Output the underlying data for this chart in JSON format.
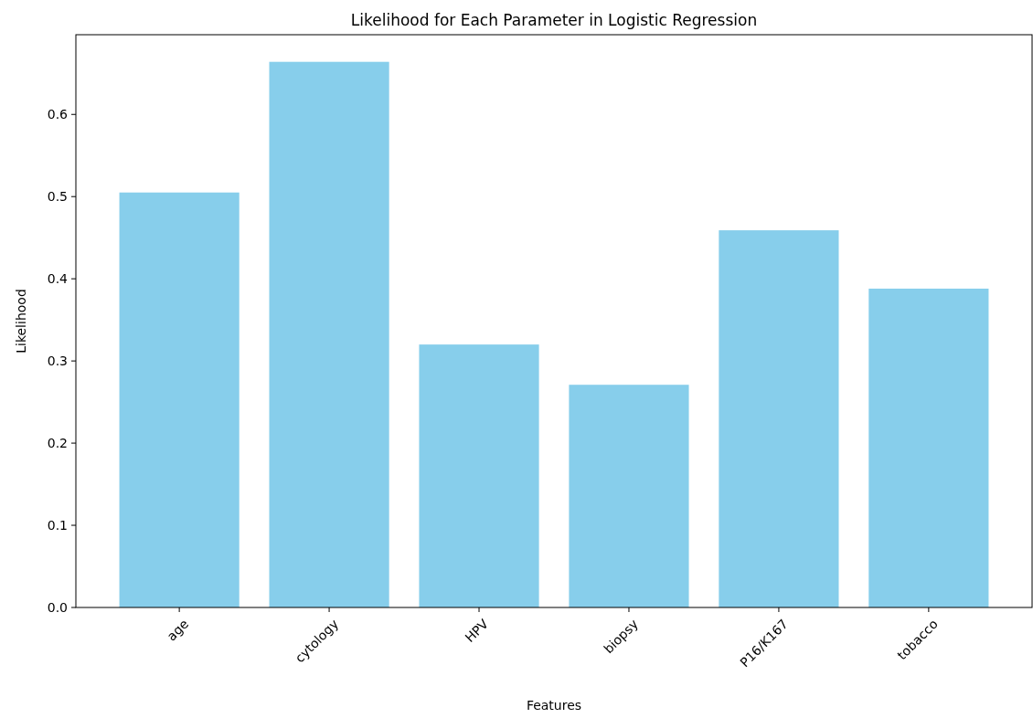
{
  "chart_data": {
    "type": "bar",
    "title": "Likelihood for Each Parameter in Logistic Regression",
    "xlabel": "Features",
    "ylabel": "Likelihood",
    "categories": [
      "age",
      "cytology",
      "HPV",
      "biopsy",
      "P16/K167",
      "tobacco"
    ],
    "values": [
      0.505,
      0.664,
      0.32,
      0.271,
      0.459,
      0.388
    ],
    "color": "#87ceeb",
    "ylim": [
      0,
      0.697
    ],
    "yticks": [
      {
        "value": 0,
        "label": "0.0"
      },
      {
        "value": 0.1,
        "label": "0.1"
      },
      {
        "value": 0.2,
        "label": "0.2"
      },
      {
        "value": 0.3,
        "label": "0.3"
      },
      {
        "value": 0.4,
        "label": "0.4"
      },
      {
        "value": 0.5,
        "label": "0.5"
      },
      {
        "value": 0.6,
        "label": "0.6"
      }
    ],
    "grid": false
  }
}
